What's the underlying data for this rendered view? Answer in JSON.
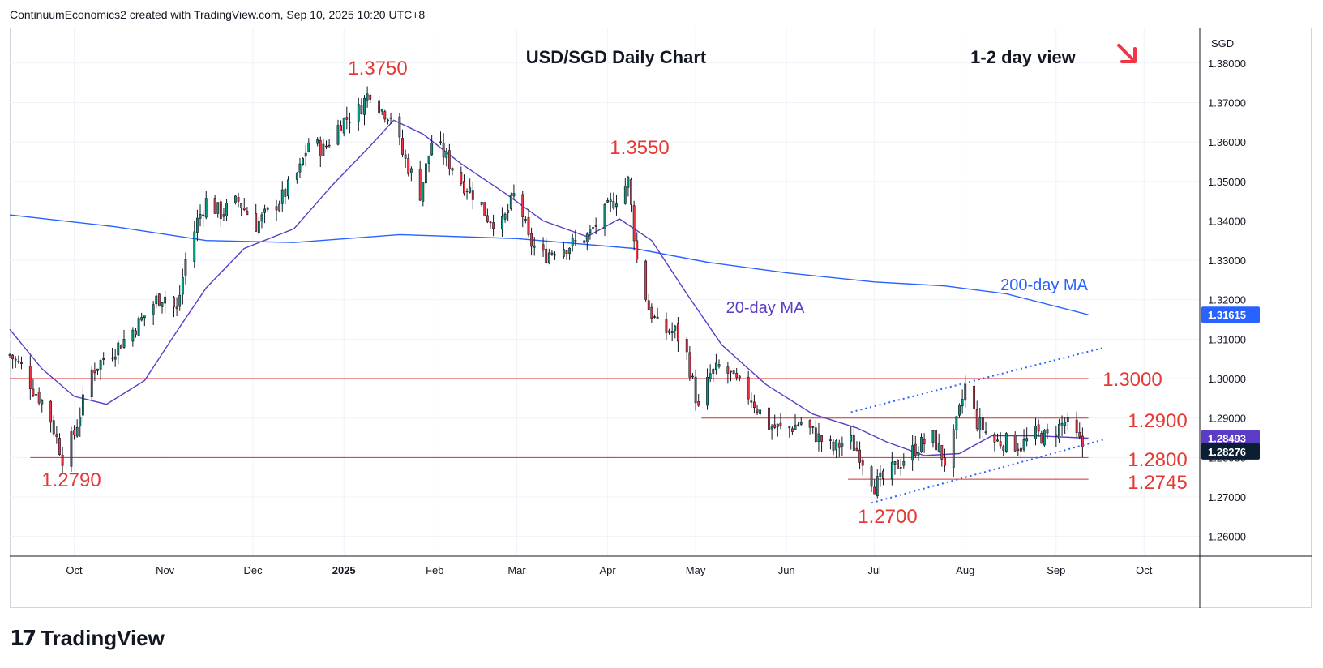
{
  "header": {
    "attribution": "ContinuumEconomics2 created with TradingView.com, Sep 10, 2025 10:20 UTC+8"
  },
  "branding": {
    "logo_text": "TradingView"
  },
  "chart_data": {
    "type": "candlestick",
    "title": "USD/SGD Daily Chart",
    "view_note": "1-2 day view",
    "view_direction": "down (red arrow)",
    "currency_label": "SGD",
    "ylim": [
      1.255,
      1.389
    ],
    "y_ticks": [
      "1.38000",
      "1.37000",
      "1.36000",
      "1.35000",
      "1.34000",
      "1.33000",
      "1.32000",
      "1.31000",
      "1.30000",
      "1.29000",
      "1.28000",
      "1.27000",
      "1.26000"
    ],
    "x_ticks": [
      "Oct",
      "Nov",
      "Dec",
      "2025",
      "Feb",
      "Mar",
      "Apr",
      "May",
      "Jun",
      "Jul",
      "Aug",
      "Sep",
      "Oct"
    ],
    "x_range": [
      "2024-09-09",
      "2025-10-20"
    ],
    "price_labels": [
      {
        "value": "1.31615",
        "series": "200-day MA",
        "color": "#2962ff"
      },
      {
        "value": "1.28493",
        "series": "20-day MA",
        "color": "#5b3cc4"
      },
      {
        "value": "1.28276",
        "series": "last price",
        "color": "#0b1e33"
      }
    ],
    "annotations": [
      {
        "text": "1.3750",
        "date": "2025-01-10",
        "value": 1.375,
        "color": "#e53935"
      },
      {
        "text": "1.3550",
        "date": "2025-04-08",
        "value": 1.355,
        "color": "#e53935"
      },
      {
        "text": "1.2790",
        "date": "2024-09-27",
        "value": 1.279,
        "color": "#e53935"
      },
      {
        "text": "1.2700",
        "date": "2025-07-01",
        "value": 1.27,
        "color": "#e53935"
      },
      {
        "text": "1.3000",
        "value": 1.3,
        "color": "#e53935"
      },
      {
        "text": "1.2900",
        "value": 1.29,
        "color": "#e53935"
      },
      {
        "text": "1.2800",
        "value": 1.28,
        "color": "#e53935"
      },
      {
        "text": "1.2745",
        "value": 1.2745,
        "color": "#e53935"
      },
      {
        "text": "20-day MA",
        "color": "#5b3cc4"
      },
      {
        "text": "200-day MA",
        "color": "#2962ff"
      }
    ],
    "horizontal_levels": [
      {
        "value": 1.3,
        "from": "2024-09-09",
        "to": "2025-09-12"
      },
      {
        "value": 1.29,
        "from": "2025-05-03",
        "to": "2025-09-12"
      },
      {
        "value": 1.28,
        "from": "2024-09-16",
        "to": "2025-09-12"
      },
      {
        "value": 1.2745,
        "from": "2025-06-22",
        "to": "2025-09-12"
      }
    ],
    "channel_lines": [
      {
        "from": [
          "2025-06-23",
          1.2915
        ],
        "to": [
          "2025-09-17",
          1.3078
        ]
      },
      {
        "from": [
          "2025-06-30",
          1.2685
        ],
        "to": [
          "2025-09-17",
          1.2845
        ]
      }
    ],
    "ma200": {
      "name": "200-day MA",
      "color": "#2962ff",
      "points": [
        [
          "2024-09-09",
          1.3415
        ],
        [
          "2024-10-15",
          1.3385
        ],
        [
          "2024-11-15",
          1.335
        ],
        [
          "2024-12-15",
          1.3345
        ],
        [
          "2025-01-20",
          1.3365
        ],
        [
          "2025-03-01",
          1.3355
        ],
        [
          "2025-04-10",
          1.333
        ],
        [
          "2025-05-05",
          1.3295
        ],
        [
          "2025-06-01",
          1.3268
        ],
        [
          "2025-07-01",
          1.3245
        ],
        [
          "2025-07-25",
          1.3235
        ],
        [
          "2025-08-15",
          1.3215
        ],
        [
          "2025-09-12",
          1.3162
        ]
      ]
    },
    "ma20": {
      "name": "20-day MA",
      "color": "#5b3cc4",
      "points": [
        [
          "2024-09-09",
          1.3125
        ],
        [
          "2024-09-20",
          1.3025
        ],
        [
          "2024-10-01",
          1.2955
        ],
        [
          "2024-10-12",
          1.2935
        ],
        [
          "2024-10-25",
          1.2995
        ],
        [
          "2024-11-05",
          1.312
        ],
        [
          "2024-11-15",
          1.323
        ],
        [
          "2024-11-28",
          1.333
        ],
        [
          "2024-12-15",
          1.338
        ],
        [
          "2024-12-28",
          1.349
        ],
        [
          "2025-01-10",
          1.359
        ],
        [
          "2025-01-18",
          1.3655
        ],
        [
          "2025-01-28",
          1.362
        ],
        [
          "2025-02-10",
          1.3545
        ],
        [
          "2025-02-25",
          1.347
        ],
        [
          "2025-03-10",
          1.34
        ],
        [
          "2025-03-25",
          1.336
        ],
        [
          "2025-04-05",
          1.3405
        ],
        [
          "2025-04-16",
          1.335
        ],
        [
          "2025-04-28",
          1.3215
        ],
        [
          "2025-05-10",
          1.3085
        ],
        [
          "2025-05-25",
          1.2985
        ],
        [
          "2025-06-10",
          1.291
        ],
        [
          "2025-06-25",
          1.2875
        ],
        [
          "2025-07-05",
          1.284
        ],
        [
          "2025-07-18",
          1.2805
        ],
        [
          "2025-07-30",
          1.281
        ],
        [
          "2025-08-10",
          1.2855
        ],
        [
          "2025-08-25",
          1.2855
        ],
        [
          "2025-09-12",
          1.2849
        ]
      ]
    },
    "price_path": [
      [
        "2024-09-09",
        1.306
      ],
      [
        "2024-09-13",
        1.303
      ],
      [
        "2024-09-17",
        1.2975
      ],
      [
        "2024-09-22",
        1.292
      ],
      [
        "2024-09-27",
        1.28
      ],
      [
        "2024-10-01",
        1.286
      ],
      [
        "2024-10-04",
        1.294
      ],
      [
        "2024-10-07",
        1.302
      ],
      [
        "2024-10-11",
        1.305
      ],
      [
        "2024-10-17",
        1.309
      ],
      [
        "2024-10-23",
        1.314
      ],
      [
        "2024-10-29",
        1.32
      ],
      [
        "2024-11-01",
        1.321
      ],
      [
        "2024-11-05",
        1.317
      ],
      [
        "2024-11-08",
        1.33
      ],
      [
        "2024-11-12",
        1.34
      ],
      [
        "2024-11-15",
        1.345
      ],
      [
        "2024-11-20",
        1.342
      ],
      [
        "2024-11-26",
        1.345
      ],
      [
        "2024-12-02",
        1.339
      ],
      [
        "2024-12-06",
        1.342
      ],
      [
        "2024-12-11",
        1.346
      ],
      [
        "2024-12-17",
        1.353
      ],
      [
        "2024-12-20",
        1.36
      ],
      [
        "2024-12-25",
        1.358
      ],
      [
        "2024-12-31",
        1.365
      ],
      [
        "2025-01-06",
        1.368
      ],
      [
        "2025-01-10",
        1.373
      ],
      [
        "2025-01-14",
        1.368
      ],
      [
        "2025-01-17",
        1.367
      ],
      [
        "2025-01-21",
        1.357
      ],
      [
        "2025-01-27",
        1.347
      ],
      [
        "2025-01-31",
        1.36
      ],
      [
        "2025-02-04",
        1.357
      ],
      [
        "2025-02-10",
        1.35
      ],
      [
        "2025-02-14",
        1.347
      ],
      [
        "2025-02-19",
        1.341
      ],
      [
        "2025-02-24",
        1.339
      ],
      [
        "2025-03-01",
        1.348
      ],
      [
        "2025-03-05",
        1.335
      ],
      [
        "2025-03-10",
        1.331
      ],
      [
        "2025-03-14",
        1.333
      ],
      [
        "2025-03-20",
        1.334
      ],
      [
        "2025-03-25",
        1.336
      ],
      [
        "2025-03-31",
        1.342
      ],
      [
        "2025-04-04",
        1.346
      ],
      [
        "2025-04-08",
        1.35
      ],
      [
        "2025-04-11",
        1.33
      ],
      [
        "2025-04-15",
        1.318
      ],
      [
        "2025-04-19",
        1.312
      ],
      [
        "2025-04-24",
        1.312
      ],
      [
        "2025-04-28",
        1.306
      ],
      [
        "2025-05-02",
        1.292
      ],
      [
        "2025-05-06",
        1.301
      ],
      [
        "2025-05-10",
        1.303
      ],
      [
        "2025-05-15",
        1.299
      ],
      [
        "2025-05-20",
        1.295
      ],
      [
        "2025-05-26",
        1.288
      ],
      [
        "2025-06-01",
        1.287
      ],
      [
        "2025-06-06",
        1.289
      ],
      [
        "2025-06-12",
        1.285
      ],
      [
        "2025-06-17",
        1.282
      ],
      [
        "2025-06-22",
        1.285
      ],
      [
        "2025-06-26",
        1.281
      ],
      [
        "2025-07-01",
        1.273
      ],
      [
        "2025-07-05",
        1.275
      ],
      [
        "2025-07-10",
        1.279
      ],
      [
        "2025-07-16",
        1.283
      ],
      [
        "2025-07-21",
        1.285
      ],
      [
        "2025-07-25",
        1.279
      ],
      [
        "2025-07-28",
        1.285
      ],
      [
        "2025-08-01",
        1.298
      ],
      [
        "2025-08-05",
        1.289
      ],
      [
        "2025-08-11",
        1.284
      ],
      [
        "2025-08-15",
        1.284
      ],
      [
        "2025-08-20",
        1.283
      ],
      [
        "2025-08-25",
        1.286
      ],
      [
        "2025-08-29",
        1.285
      ],
      [
        "2025-09-04",
        1.289
      ],
      [
        "2025-09-08",
        1.285
      ],
      [
        "2025-09-10",
        1.2828
      ]
    ]
  }
}
